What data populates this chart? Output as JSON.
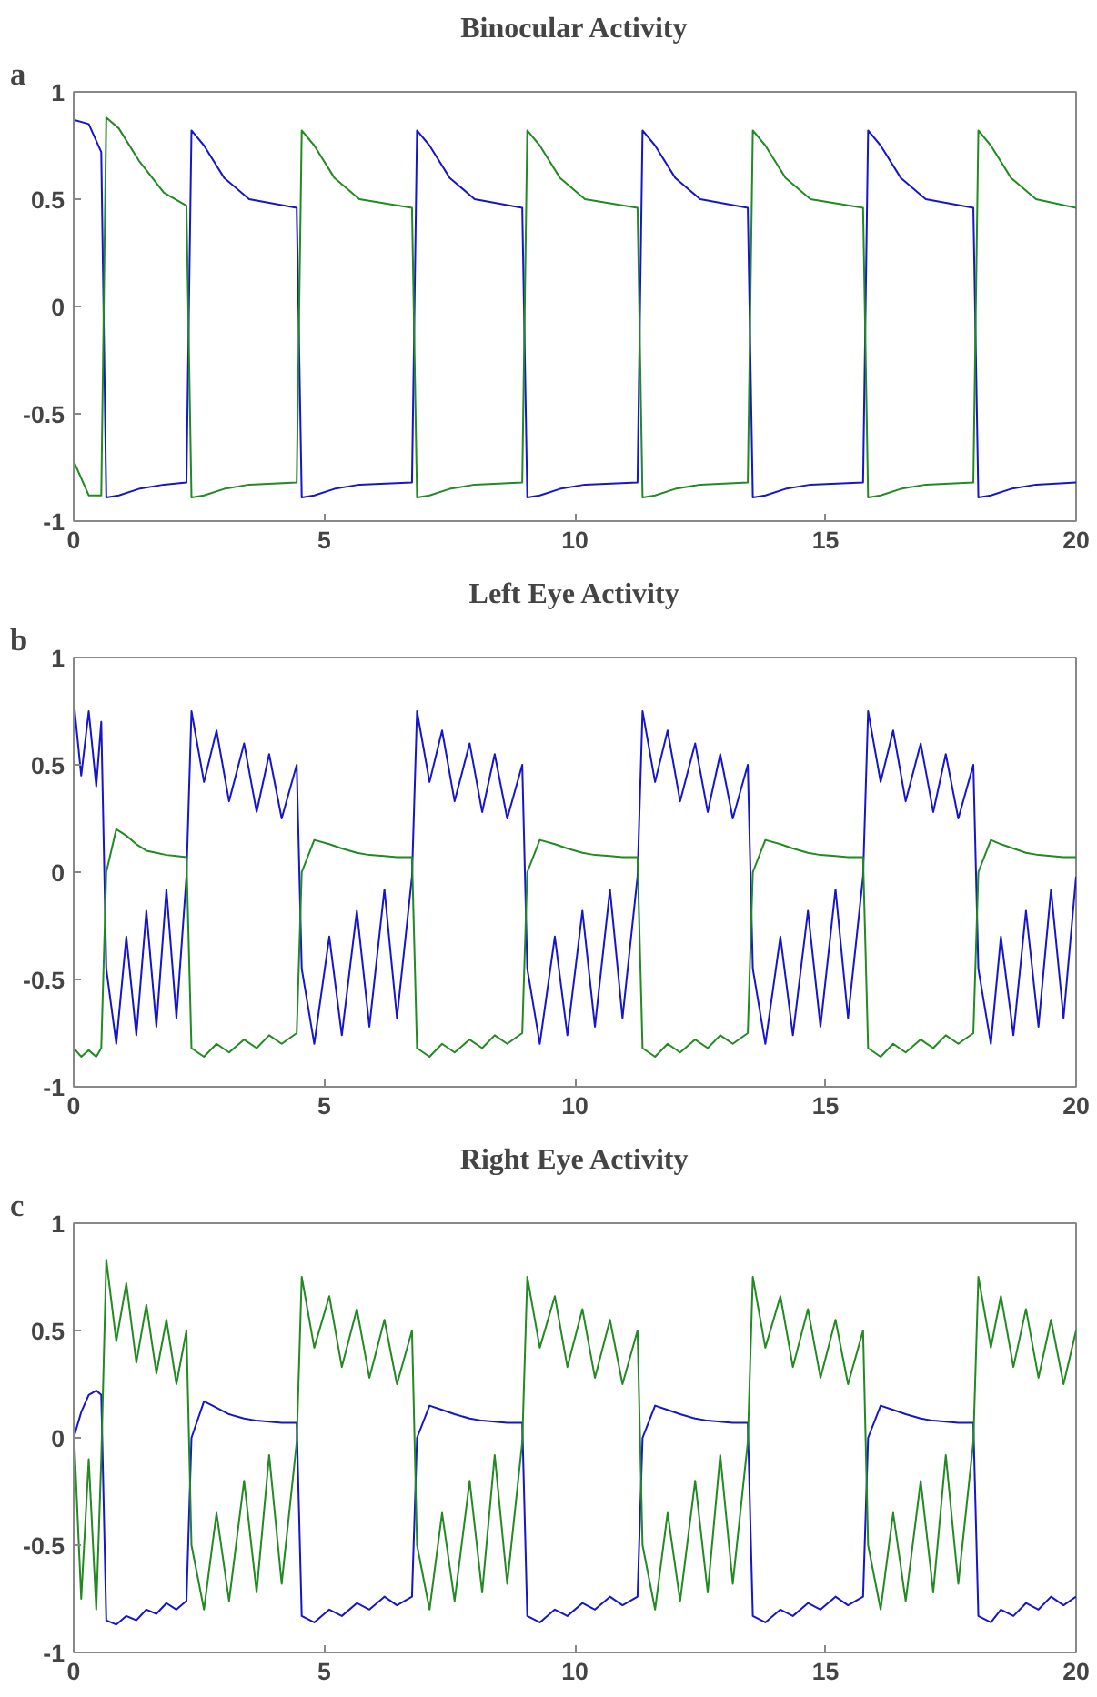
{
  "chart_data": [
    {
      "type": "line",
      "title": "Binocular Activity",
      "annotations": [
        "a"
      ],
      "xlim": [
        0,
        20
      ],
      "ylim": [
        -1,
        1
      ],
      "xticks": [
        0,
        5,
        10,
        15,
        20
      ],
      "yticks": [
        -1,
        -0.5,
        0,
        0.5,
        1
      ],
      "x": [
        0,
        0.3,
        0.55,
        0.65,
        0.9,
        1.3,
        1.8,
        2.25,
        2.35,
        2.6,
        3.0,
        3.5,
        4.45,
        4.55,
        4.8,
        5.2,
        5.7,
        6.75,
        6.85,
        7.1,
        7.5,
        8.0,
        8.95,
        9.05,
        9.3,
        9.7,
        10.2,
        11.25,
        11.35,
        11.6,
        12.0,
        12.5,
        13.45,
        13.55,
        13.8,
        14.2,
        14.7,
        15.75,
        15.85,
        16.1,
        16.5,
        17.0,
        17.95,
        18.05,
        18.3,
        18.7,
        19.2,
        20
      ],
      "series": [
        {
          "color": "#1515d0",
          "values": [
            0.87,
            0.85,
            0.72,
            -0.89,
            -0.88,
            -0.85,
            -0.83,
            -0.82,
            0.82,
            0.75,
            0.6,
            0.5,
            0.46,
            -0.89,
            -0.88,
            -0.85,
            -0.83,
            -0.82,
            0.82,
            0.75,
            0.6,
            0.5,
            0.46,
            -0.89,
            -0.88,
            -0.85,
            -0.83,
            -0.82,
            0.82,
            0.75,
            0.6,
            0.5,
            0.46,
            -0.89,
            -0.88,
            -0.85,
            -0.83,
            -0.82,
            0.82,
            0.75,
            0.6,
            0.5,
            0.46,
            -0.89,
            -0.88,
            -0.85,
            -0.83,
            -0.82
          ]
        },
        {
          "color": "#218a21",
          "values": [
            -0.72,
            -0.88,
            -0.88,
            0.88,
            0.83,
            0.68,
            0.53,
            0.47,
            -0.89,
            -0.88,
            -0.85,
            -0.83,
            -0.82,
            0.82,
            0.75,
            0.6,
            0.5,
            0.46,
            -0.89,
            -0.88,
            -0.85,
            -0.83,
            -0.82,
            0.82,
            0.75,
            0.6,
            0.5,
            0.46,
            -0.89,
            -0.88,
            -0.85,
            -0.83,
            -0.82,
            0.82,
            0.75,
            0.6,
            0.5,
            0.46,
            -0.89,
            -0.88,
            -0.85,
            -0.83,
            -0.82,
            0.82,
            0.75,
            0.6,
            0.5,
            0.46
          ]
        }
      ]
    },
    {
      "type": "line",
      "title": "Left Eye Activity",
      "annotations": [
        "b"
      ],
      "xlim": [
        0,
        20
      ],
      "ylim": [
        -1,
        1
      ],
      "xticks": [
        0,
        5,
        10,
        15,
        20
      ],
      "yticks": [
        -1,
        -0.5,
        0,
        0.5,
        1
      ],
      "x": [
        0,
        0.15,
        0.3,
        0.45,
        0.55,
        0.65,
        0.85,
        1.05,
        1.25,
        1.45,
        1.65,
        1.85,
        2.05,
        2.25,
        2.35,
        2.6,
        2.85,
        3.1,
        3.4,
        3.65,
        3.9,
        4.15,
        4.45,
        4.55,
        4.8,
        5.1,
        5.35,
        5.65,
        5.9,
        6.2,
        6.45,
        6.75,
        6.85,
        7.1,
        7.35,
        7.6,
        7.9,
        8.15,
        8.4,
        8.65,
        8.95,
        9.05,
        9.3,
        9.6,
        9.85,
        10.15,
        10.4,
        10.7,
        10.95,
        11.25,
        11.35,
        11.6,
        11.85,
        12.1,
        12.4,
        12.65,
        12.9,
        13.15,
        13.45,
        13.55,
        13.8,
        14.1,
        14.35,
        14.65,
        14.9,
        15.2,
        15.45,
        15.75,
        15.85,
        16.1,
        16.35,
        16.6,
        16.9,
        17.15,
        17.4,
        17.65,
        17.95,
        18.05,
        18.3,
        18.5,
        18.75,
        19.0,
        19.25,
        19.5,
        19.75,
        20
      ],
      "series": [
        {
          "color": "#1515d0",
          "values": [
            0.8,
            0.45,
            0.75,
            0.4,
            0.7,
            -0.45,
            -0.8,
            -0.3,
            -0.76,
            -0.18,
            -0.72,
            -0.08,
            -0.68,
            -0.02,
            0.75,
            0.42,
            0.66,
            0.33,
            0.6,
            0.28,
            0.55,
            0.25,
            0.5,
            -0.45,
            -0.8,
            -0.3,
            -0.76,
            -0.18,
            -0.72,
            -0.08,
            -0.68,
            -0.02,
            0.75,
            0.42,
            0.66,
            0.33,
            0.6,
            0.28,
            0.55,
            0.25,
            0.5,
            -0.45,
            -0.8,
            -0.3,
            -0.76,
            -0.18,
            -0.72,
            -0.08,
            -0.68,
            -0.02,
            0.75,
            0.42,
            0.66,
            0.33,
            0.6,
            0.28,
            0.55,
            0.25,
            0.5,
            -0.45,
            -0.8,
            -0.3,
            -0.76,
            -0.18,
            -0.72,
            -0.08,
            -0.68,
            -0.02,
            0.75,
            0.42,
            0.66,
            0.33,
            0.6,
            0.28,
            0.55,
            0.25,
            0.5,
            -0.45,
            -0.8,
            -0.3,
            -0.76,
            -0.18,
            -0.72,
            -0.08,
            -0.68,
            -0.02
          ]
        },
        {
          "color": "#218a21",
          "values": [
            -0.82,
            -0.86,
            -0.83,
            -0.86,
            -0.82,
            0.0,
            0.2,
            0.17,
            0.13,
            0.1,
            0.09,
            0.08,
            0.075,
            0.07,
            -0.82,
            -0.86,
            -0.8,
            -0.84,
            -0.78,
            -0.82,
            -0.76,
            -0.8,
            -0.75,
            0.0,
            0.15,
            0.13,
            0.11,
            0.09,
            0.08,
            0.075,
            0.07,
            0.07,
            -0.82,
            -0.86,
            -0.8,
            -0.84,
            -0.78,
            -0.82,
            -0.76,
            -0.8,
            -0.75,
            0.0,
            0.15,
            0.13,
            0.11,
            0.09,
            0.08,
            0.075,
            0.07,
            0.07,
            -0.82,
            -0.86,
            -0.8,
            -0.84,
            -0.78,
            -0.82,
            -0.76,
            -0.8,
            -0.75,
            0.0,
            0.15,
            0.13,
            0.11,
            0.09,
            0.08,
            0.075,
            0.07,
            0.07,
            -0.82,
            -0.86,
            -0.8,
            -0.84,
            -0.78,
            -0.82,
            -0.76,
            -0.8,
            -0.75,
            0.0,
            0.15,
            0.13,
            0.11,
            0.09,
            0.08,
            0.075,
            0.07,
            0.07
          ]
        }
      ]
    },
    {
      "type": "line",
      "title": "Right Eye Activity",
      "annotations": [
        "c"
      ],
      "xlim": [
        0,
        20
      ],
      "ylim": [
        -1,
        1
      ],
      "xticks": [
        0,
        5,
        10,
        15,
        20
      ],
      "yticks": [
        -1,
        -0.5,
        0,
        0.5,
        1
      ],
      "x": [
        0,
        0.15,
        0.3,
        0.45,
        0.55,
        0.65,
        0.85,
        1.05,
        1.25,
        1.45,
        1.65,
        1.85,
        2.05,
        2.25,
        2.35,
        2.6,
        2.85,
        3.1,
        3.4,
        3.65,
        3.9,
        4.15,
        4.45,
        4.55,
        4.8,
        5.1,
        5.35,
        5.65,
        5.9,
        6.2,
        6.45,
        6.75,
        6.85,
        7.1,
        7.35,
        7.6,
        7.9,
        8.15,
        8.4,
        8.65,
        8.95,
        9.05,
        9.3,
        9.6,
        9.85,
        10.15,
        10.4,
        10.7,
        10.95,
        11.25,
        11.35,
        11.6,
        11.85,
        12.1,
        12.4,
        12.65,
        12.9,
        13.15,
        13.45,
        13.55,
        13.8,
        14.1,
        14.35,
        14.65,
        14.9,
        15.2,
        15.45,
        15.75,
        15.85,
        16.1,
        16.35,
        16.6,
        16.9,
        17.15,
        17.4,
        17.65,
        17.95,
        18.05,
        18.3,
        18.5,
        18.75,
        19.0,
        19.25,
        19.5,
        19.75,
        20
      ],
      "series": [
        {
          "color": "#1515d0",
          "values": [
            0.0,
            0.12,
            0.2,
            0.22,
            0.2,
            -0.85,
            -0.87,
            -0.83,
            -0.85,
            -0.8,
            -0.82,
            -0.77,
            -0.8,
            -0.76,
            0.0,
            0.17,
            0.14,
            0.11,
            0.09,
            0.08,
            0.075,
            0.07,
            0.07,
            -0.83,
            -0.86,
            -0.8,
            -0.83,
            -0.77,
            -0.8,
            -0.74,
            -0.78,
            -0.74,
            0.0,
            0.15,
            0.13,
            0.11,
            0.09,
            0.08,
            0.075,
            0.07,
            0.07,
            -0.83,
            -0.86,
            -0.8,
            -0.83,
            -0.77,
            -0.8,
            -0.74,
            -0.78,
            -0.74,
            0.0,
            0.15,
            0.13,
            0.11,
            0.09,
            0.08,
            0.075,
            0.07,
            0.07,
            -0.83,
            -0.86,
            -0.8,
            -0.83,
            -0.77,
            -0.8,
            -0.74,
            -0.78,
            -0.74,
            0.0,
            0.15,
            0.13,
            0.11,
            0.09,
            0.08,
            0.075,
            0.07,
            0.07,
            -0.83,
            -0.86,
            -0.8,
            -0.83,
            -0.77,
            -0.8,
            -0.74,
            -0.78,
            -0.74
          ]
        },
        {
          "color": "#218a21",
          "values": [
            0.05,
            -0.75,
            -0.1,
            -0.8,
            -0.1,
            0.83,
            0.45,
            0.72,
            0.35,
            0.62,
            0.3,
            0.55,
            0.25,
            0.5,
            -0.5,
            -0.8,
            -0.35,
            -0.76,
            -0.2,
            -0.72,
            -0.08,
            -0.68,
            -0.02,
            0.75,
            0.42,
            0.66,
            0.33,
            0.6,
            0.28,
            0.55,
            0.25,
            0.5,
            -0.5,
            -0.8,
            -0.35,
            -0.76,
            -0.2,
            -0.72,
            -0.08,
            -0.68,
            -0.02,
            0.75,
            0.42,
            0.66,
            0.33,
            0.6,
            0.28,
            0.55,
            0.25,
            0.5,
            -0.5,
            -0.8,
            -0.35,
            -0.76,
            -0.2,
            -0.72,
            -0.08,
            -0.68,
            -0.02,
            0.75,
            0.42,
            0.66,
            0.33,
            0.6,
            0.28,
            0.55,
            0.25,
            0.5,
            -0.5,
            -0.8,
            -0.35,
            -0.76,
            -0.2,
            -0.72,
            -0.08,
            -0.68,
            -0.02,
            0.75,
            0.42,
            0.66,
            0.33,
            0.6,
            0.28,
            0.55,
            0.25,
            0.5
          ]
        }
      ]
    }
  ]
}
